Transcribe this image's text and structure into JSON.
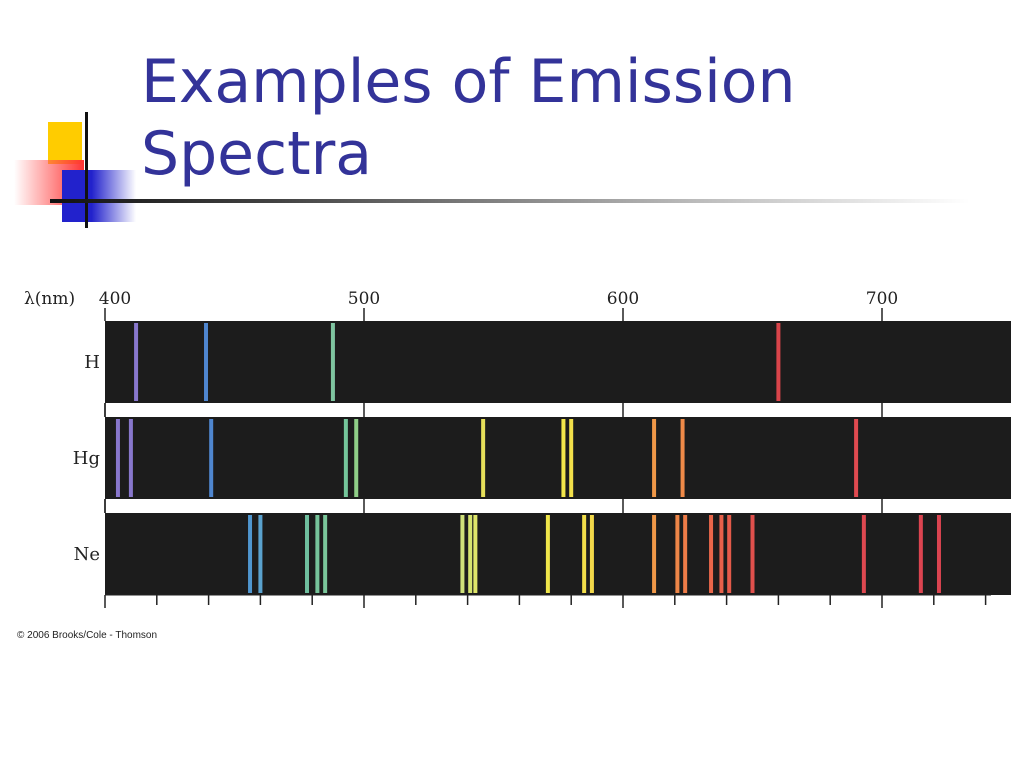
{
  "slide": {
    "title": "Examples of Emission Spectra",
    "copyright": "© 2006 Brooks/Cole - Thomson"
  },
  "chart_data": {
    "type": "emission-spectra",
    "xlabel": "λ(nm)",
    "xlim": [
      400,
      750
    ],
    "tick_labels": [
      "400",
      "500",
      "600",
      "700"
    ],
    "background_color": "#1c1c1c",
    "series": [
      {
        "name": "H",
        "lines": [
          {
            "nm": 412,
            "color": "#8877cc"
          },
          {
            "nm": 439,
            "color": "#4f86cf"
          },
          {
            "nm": 488,
            "color": "#7fc4a0"
          },
          {
            "nm": 660,
            "color": "#d9444a"
          }
        ]
      },
      {
        "name": "Hg",
        "lines": [
          {
            "nm": 405,
            "color": "#8877cc"
          },
          {
            "nm": 410,
            "color": "#8877cc"
          },
          {
            "nm": 441,
            "color": "#4f86cf"
          },
          {
            "nm": 493,
            "color": "#74c59a"
          },
          {
            "nm": 497,
            "color": "#90cf88"
          },
          {
            "nm": 546,
            "color": "#e6e05a"
          },
          {
            "nm": 577,
            "color": "#f2e64a"
          },
          {
            "nm": 580,
            "color": "#f2e04a"
          },
          {
            "nm": 612,
            "color": "#f09848"
          },
          {
            "nm": 623,
            "color": "#ef8a48"
          },
          {
            "nm": 690,
            "color": "#e04a50"
          }
        ]
      },
      {
        "name": "Ne",
        "lines": [
          {
            "nm": 456,
            "color": "#4f96cf"
          },
          {
            "nm": 460,
            "color": "#5aa2cf"
          },
          {
            "nm": 478,
            "color": "#6fbf9f"
          },
          {
            "nm": 482,
            "color": "#76c39a"
          },
          {
            "nm": 485,
            "color": "#7ac69a"
          },
          {
            "nm": 538,
            "color": "#cfe07a"
          },
          {
            "nm": 541,
            "color": "#d6e470"
          },
          {
            "nm": 543,
            "color": "#dfe66a"
          },
          {
            "nm": 571,
            "color": "#f0e64a"
          },
          {
            "nm": 585,
            "color": "#f2de4a"
          },
          {
            "nm": 588,
            "color": "#f2d84a"
          },
          {
            "nm": 612,
            "color": "#f09848"
          },
          {
            "nm": 621,
            "color": "#ee8648"
          },
          {
            "nm": 624,
            "color": "#ee7c48"
          },
          {
            "nm": 634,
            "color": "#e8664a"
          },
          {
            "nm": 638,
            "color": "#e6604a"
          },
          {
            "nm": 641,
            "color": "#e45a4a"
          },
          {
            "nm": 650,
            "color": "#e0504c"
          },
          {
            "nm": 693,
            "color": "#de4850"
          },
          {
            "nm": 715,
            "color": "#dc4450"
          },
          {
            "nm": 722,
            "color": "#da4450"
          }
        ]
      }
    ]
  }
}
